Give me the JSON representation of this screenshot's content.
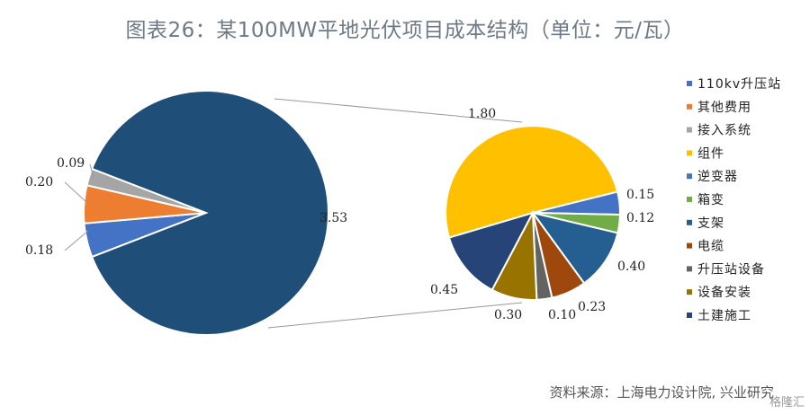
{
  "title": "图表26：某100MW平地光伏项目成本结构（单位：元/瓦）",
  "source": "资料来源：上海电力设计院, 兴业研究",
  "watermark": "格隆汇",
  "colors": {
    "dark_navy": "#1f4e79",
    "orange": "#ed7d31",
    "gray": "#a5a5a5",
    "yellow": "#ffc000",
    "blue": "#4472c4",
    "green": "#70ad47",
    "mid_blue": "#255e91",
    "brown": "#9e480e",
    "dark_gray": "#636363",
    "olive": "#997300",
    "navy": "#264478"
  },
  "chart_data": {
    "type": "pie-of-pie",
    "legend_position": "right",
    "main_pie": [
      {
        "name": "110kv升压站",
        "value": 0.18,
        "label": "0.18",
        "color": "#4472c4"
      },
      {
        "name": "其他费用",
        "value": 0.2,
        "label": "0.20",
        "color": "#ed7d31"
      },
      {
        "name": "接入系统",
        "value": 0.09,
        "label": "0.09",
        "color": "#a5a5a5"
      },
      {
        "name": "",
        "value": 3.53,
        "label": "3.53",
        "color": "#1f4e79"
      }
    ],
    "secondary_pie": [
      {
        "name": "组件",
        "value": 1.8,
        "label": "1.80",
        "color": "#ffc000"
      },
      {
        "name": "逆变器",
        "value": 0.15,
        "label": "0.15",
        "color": "#4472c4"
      },
      {
        "name": "箱变",
        "value": 0.12,
        "label": "0.12",
        "color": "#70ad47"
      },
      {
        "name": "支架",
        "value": 0.4,
        "label": "0.40",
        "color": "#255e91"
      },
      {
        "name": "电缆",
        "value": 0.23,
        "label": "0.23",
        "color": "#9e480e"
      },
      {
        "name": "升压站设备",
        "value": 0.1,
        "label": "0.10",
        "color": "#636363"
      },
      {
        "name": "设备安装",
        "value": 0.3,
        "label": "0.30",
        "color": "#997300"
      },
      {
        "name": "土建施工",
        "value": 0.45,
        "label": "0.45",
        "color": "#264478"
      }
    ],
    "legend": [
      {
        "name": "110kv升压站",
        "color": "#4472c4"
      },
      {
        "name": "其他费用",
        "color": "#ed7d31"
      },
      {
        "name": "接入系统",
        "color": "#a5a5a5"
      },
      {
        "name": "组件",
        "color": "#ffc000"
      },
      {
        "name": "逆变器",
        "color": "#4472c4"
      },
      {
        "name": "箱变",
        "color": "#70ad47"
      },
      {
        "name": "支架",
        "color": "#255e91"
      },
      {
        "name": "电缆",
        "color": "#9e480e"
      },
      {
        "name": "升压站设备",
        "color": "#636363"
      },
      {
        "name": "设备安装",
        "color": "#997300"
      },
      {
        "name": "土建施工",
        "color": "#264478"
      }
    ]
  }
}
